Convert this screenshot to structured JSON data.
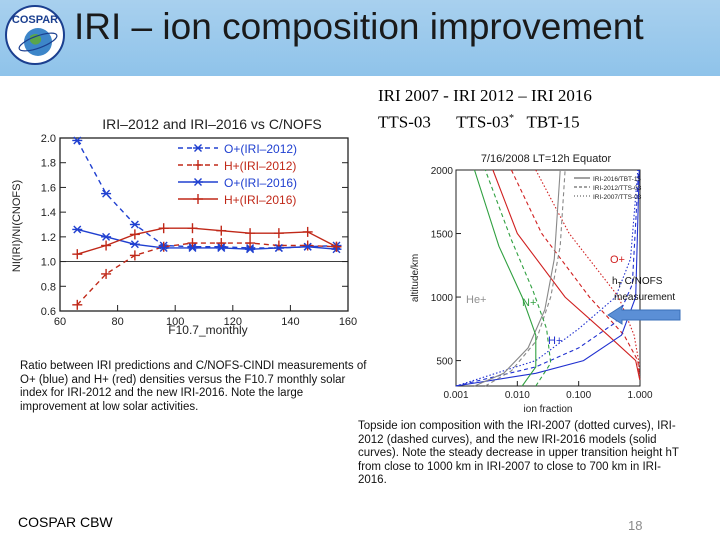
{
  "slide": {
    "title": "IRI – ion composition improvement",
    "logo_text": "COSPAR",
    "models_line1": "IRI 2007 - IRI 2012 – IRI 2016",
    "models_line2_a": "TTS-03",
    "models_line2_b": "TTS-03",
    "models_line2_star": "*",
    "models_line2_c": "TBT-15",
    "left_caption": "Ratio between IRI predictions and C/NOFS-CINDI measurements of O+ (blue) and H+ (red) densities versus the F10.7 monthly solar index for IRI-2012 and the new IRI-2016. Note the large improvement at low solar activities.",
    "right_caption": "Topside ion composition with the IRI-2007 (dotted curves), IRI-2012 (dashed curves), and the new IRI-2016 models (solid curves). Note the steady decrease in upper transition height hT from close to 1000 km in IRI-2007 to close to 700 km in IRI-2016.",
    "ht_label": "h",
    "ht_sub": "T",
    "ht_rest": " C/NOFS",
    "ht_line2": "measurement",
    "footer": "COSPAR CBW",
    "page_number": "18",
    "colors": {
      "header": "#98c8ec",
      "blue": "#2040d0",
      "red": "#c02818",
      "arrow": "#5b8fd6"
    }
  },
  "chart_data": [
    {
      "type": "line",
      "title": "IRI–2012 and IRI–2016 vs C/NOFS",
      "xlabel": "F10.7_monthly",
      "ylabel": "NI(IRI)/NI(CNOFS)",
      "xlim": [
        60,
        160
      ],
      "ylim": [
        0.6,
        2.0
      ],
      "xticks": [
        "60",
        "80",
        "100",
        "120",
        "140",
        "160"
      ],
      "yticks": [
        "0.6",
        "0.8",
        "1.0",
        "1.2",
        "1.4",
        "1.6",
        "1.8",
        "2.0"
      ],
      "series": [
        {
          "name": "O+(IRI–2012)",
          "color": "#2040d0",
          "dash": true,
          "marker": "star",
          "x": [
            66,
            76,
            86,
            96,
            106,
            116,
            126,
            136,
            146,
            156
          ],
          "y": [
            1.98,
            1.55,
            1.3,
            1.13,
            1.12,
            1.12,
            1.11,
            1.11,
            1.12,
            1.13
          ]
        },
        {
          "name": "H+(IRI–2012)",
          "color": "#c02818",
          "dash": true,
          "marker": "plus",
          "x": [
            66,
            76,
            86,
            96,
            106,
            116,
            126,
            136,
            146,
            156
          ],
          "y": [
            0.65,
            0.9,
            1.05,
            1.12,
            1.15,
            1.15,
            1.15,
            1.13,
            1.13,
            1.12
          ]
        },
        {
          "name": "O+(IRI–2016)",
          "color": "#2040d0",
          "dash": false,
          "marker": "star",
          "x": [
            66,
            76,
            86,
            96,
            106,
            116,
            126,
            136,
            146,
            156
          ],
          "y": [
            1.26,
            1.2,
            1.14,
            1.11,
            1.11,
            1.11,
            1.1,
            1.11,
            1.12,
            1.1
          ]
        },
        {
          "name": "H+(IRI–2016)",
          "color": "#c02818",
          "dash": false,
          "marker": "plus",
          "x": [
            66,
            76,
            86,
            96,
            106,
            116,
            126,
            136,
            146,
            156
          ],
          "y": [
            1.06,
            1.13,
            1.22,
            1.27,
            1.27,
            1.25,
            1.23,
            1.23,
            1.24,
            1.12
          ]
        }
      ]
    },
    {
      "type": "line",
      "title": "7/16/2008 LT=12h Equator",
      "xlabel": "ion fraction",
      "ylabel": "altitude/km",
      "xscale": "log",
      "xlim": [
        0.001,
        1.0
      ],
      "ylim": [
        300,
        2000
      ],
      "xticks": [
        "0.001",
        "0.010",
        "0.100",
        "1.000"
      ],
      "yticks": [
        "500",
        "1000",
        "1500",
        "2000"
      ],
      "legend": [
        "IRI-2016/TBT-15",
        "IRI-2012/TTS-03",
        "IRI-2007/TTS-03"
      ],
      "annotations": [
        "O+",
        "He+",
        "N+",
        "H+"
      ],
      "series": [
        {
          "name": "O+ (2016, solid)",
          "color": "#d02020",
          "style": "solid",
          "y": [
            2000,
            1500,
            1000,
            700,
            500,
            350
          ],
          "x": [
            0.004,
            0.01,
            0.06,
            0.3,
            0.85,
            0.99
          ]
        },
        {
          "name": "O+ (2012, dashed)",
          "color": "#d02020",
          "style": "dashed",
          "y": [
            2000,
            1500,
            1000,
            700,
            500,
            350
          ],
          "x": [
            0.008,
            0.025,
            0.15,
            0.55,
            0.92,
            0.99
          ]
        },
        {
          "name": "O+ (2007, dotted)",
          "color": "#d02020",
          "style": "dotted",
          "y": [
            2000,
            1500,
            1000,
            700,
            500,
            350
          ],
          "x": [
            0.02,
            0.07,
            0.45,
            0.8,
            0.95,
            0.99
          ]
        },
        {
          "name": "H+ (2016, solid)",
          "color": "#2030d0",
          "style": "solid",
          "y": [
            300,
            400,
            500,
            700,
            1000,
            2000
          ],
          "x": [
            0.001,
            0.02,
            0.12,
            0.5,
            0.85,
            0.97
          ]
        },
        {
          "name": "H+ (2012, dashed)",
          "color": "#2030d0",
          "style": "dashed",
          "y": [
            300,
            450,
            600,
            800,
            1100,
            2000
          ],
          "x": [
            0.001,
            0.02,
            0.1,
            0.4,
            0.75,
            0.95
          ]
        },
        {
          "name": "H+ (2007, dotted)",
          "color": "#2030d0",
          "style": "dotted",
          "y": [
            300,
            500,
            750,
            1000,
            1300,
            2000
          ],
          "x": [
            0.001,
            0.02,
            0.1,
            0.4,
            0.7,
            0.92
          ]
        },
        {
          "name": "He+ (2016, solid)",
          "color": "#888888",
          "style": "solid",
          "y": [
            300,
            400,
            600,
            900,
            1300,
            2000
          ],
          "x": [
            0.002,
            0.006,
            0.015,
            0.028,
            0.04,
            0.05
          ]
        },
        {
          "name": "He+ (2012, dashed)",
          "color": "#888888",
          "style": "dashed",
          "y": [
            300,
            420,
            650,
            1000,
            1400,
            2000
          ],
          "x": [
            0.003,
            0.008,
            0.02,
            0.035,
            0.05,
            0.06
          ]
        },
        {
          "name": "N+ (2016, solid)",
          "color": "#30a040",
          "style": "solid",
          "y": [
            300,
            450,
            700,
            1000,
            1400,
            2000
          ],
          "x": [
            0.012,
            0.02,
            0.02,
            0.012,
            0.005,
            0.002
          ]
        },
        {
          "name": "N+ (2012, dashed)",
          "color": "#30a040",
          "style": "dashed",
          "y": [
            300,
            480,
            750,
            1050,
            1450,
            2000
          ],
          "x": [
            0.02,
            0.035,
            0.03,
            0.018,
            0.008,
            0.003
          ]
        }
      ]
    }
  ]
}
